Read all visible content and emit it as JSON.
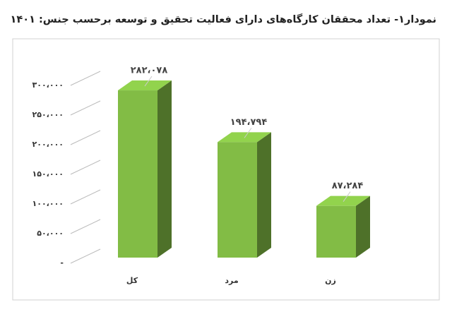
{
  "chart_data": {
    "type": "bar3d",
    "title": "نمودار۱- تعداد محققان کارگاه‌های دارای فعالیت تحقیق و توسعه برحسب جنس: ۱۴۰۱",
    "categories": [
      "کل",
      "مرد",
      "زن"
    ],
    "values": [
      282078,
      194794,
      87284
    ],
    "value_labels": [
      "۲۸۲،۰۷۸",
      "۱۹۴،۷۹۴",
      "۸۷،۲۸۴"
    ],
    "color": "#82bc45",
    "ylim": [
      0,
      300000
    ],
    "yticks": [
      {
        "value": 0,
        "label": "-"
      },
      {
        "value": 50000,
        "label": "۵۰،۰۰۰"
      },
      {
        "value": 100000,
        "label": "۱۰۰،۰۰۰"
      },
      {
        "value": 150000,
        "label": "۱۵۰،۰۰۰"
      },
      {
        "value": 200000,
        "label": "۲۰۰،۰۰۰"
      },
      {
        "value": 250000,
        "label": "۲۵۰،۰۰۰"
      },
      {
        "value": 300000,
        "label": "۳۰۰،۰۰۰"
      }
    ],
    "grid": true
  }
}
